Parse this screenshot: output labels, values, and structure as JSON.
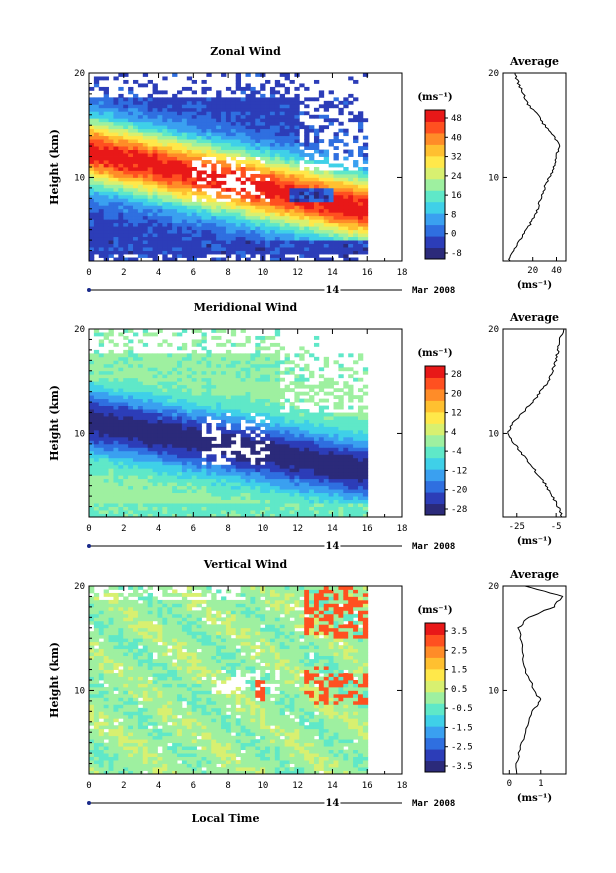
{
  "chart_data": [
    {
      "type": "heatmap",
      "title": "Zonal Wind",
      "ylabel": "Height (km)",
      "xlim": [
        0,
        18
      ],
      "ylim": [
        2,
        20
      ],
      "x_ticks": [
        "0",
        "2",
        "4",
        "6",
        "8",
        "10",
        "12",
        "14",
        "16",
        "18"
      ],
      "y_ticks": [
        "10",
        "20"
      ],
      "colorbar_unit": "(ms⁻¹)",
      "colorbar_ticks": [
        "48",
        "40",
        "32",
        "24",
        "16",
        "8",
        "0",
        "-8"
      ],
      "colorbar_range": [
        -8,
        52
      ],
      "date_label": "14",
      "date_suffix": "Mar 2008",
      "average": {
        "title": "Average",
        "x_ticks": [
          "20",
          "40"
        ],
        "xlim": [
          -5,
          48
        ],
        "xlabel": "(ms⁻¹)",
        "profile": [
          [
            0,
            2
          ],
          [
            4,
            3
          ],
          [
            9,
            4
          ],
          [
            15,
            5
          ],
          [
            20,
            6
          ],
          [
            24,
            7
          ],
          [
            27,
            8
          ],
          [
            30,
            9
          ],
          [
            34,
            10
          ],
          [
            38,
            11
          ],
          [
            40,
            12
          ],
          [
            42,
            13
          ],
          [
            38,
            14
          ],
          [
            30,
            15
          ],
          [
            24,
            16
          ],
          [
            16,
            17
          ],
          [
            12,
            18
          ],
          [
            8,
            19
          ],
          [
            5,
            20
          ]
        ]
      }
    },
    {
      "type": "heatmap",
      "title": "Meridional Wind",
      "ylabel": "Height (km)",
      "xlim": [
        0,
        18
      ],
      "ylim": [
        2,
        20
      ],
      "x_ticks": [
        "0",
        "2",
        "4",
        "6",
        "8",
        "10",
        "12",
        "14",
        "16",
        "18"
      ],
      "y_ticks": [
        "10",
        "20"
      ],
      "colorbar_unit": "(ms⁻¹)",
      "colorbar_ticks": [
        "28",
        "20",
        "12",
        "4",
        "-4",
        "-12",
        "-20",
        "-28"
      ],
      "colorbar_range": [
        -32,
        32
      ],
      "date_label": "14",
      "date_suffix": "Mar 2008",
      "average": {
        "title": "Average",
        "x_ticks": [
          "-25",
          "-5"
        ],
        "xlim": [
          -32,
          0
        ],
        "xlabel": "(ms⁻¹)",
        "profile": [
          [
            -2,
            2
          ],
          [
            -4,
            3
          ],
          [
            -7,
            4
          ],
          [
            -10,
            5
          ],
          [
            -14,
            6
          ],
          [
            -18,
            7
          ],
          [
            -22,
            8
          ],
          [
            -26,
            9
          ],
          [
            -30,
            10
          ],
          [
            -27,
            11
          ],
          [
            -22,
            12
          ],
          [
            -17,
            13
          ],
          [
            -13,
            14
          ],
          [
            -9,
            15
          ],
          [
            -7,
            16
          ],
          [
            -5,
            17
          ],
          [
            -4,
            18
          ],
          [
            -3,
            19
          ],
          [
            -1,
            20
          ]
        ]
      }
    },
    {
      "type": "heatmap",
      "title": "Vertical Wind",
      "ylabel": "Height (km)",
      "xlabel": "Local Time",
      "xlim": [
        0,
        18
      ],
      "ylim": [
        2,
        20
      ],
      "x_ticks": [
        "0",
        "2",
        "4",
        "6",
        "8",
        "10",
        "12",
        "14",
        "16",
        "18"
      ],
      "y_ticks": [
        "10",
        "20"
      ],
      "colorbar_unit": "(ms⁻¹)",
      "colorbar_ticks": [
        "3.5",
        "2.5",
        "1.5",
        "0.5",
        "-0.5",
        "-1.5",
        "-2.5",
        "-3.5"
      ],
      "colorbar_range": [
        -4,
        4
      ],
      "date_label": "14",
      "date_suffix": "Mar 2008",
      "average": {
        "title": "Average",
        "x_ticks": [
          "0",
          "1"
        ],
        "xlim": [
          -0.2,
          1.8
        ],
        "xlabel": "(ms⁻¹)",
        "profile": [
          [
            0.2,
            2
          ],
          [
            0.3,
            4
          ],
          [
            0.5,
            6
          ],
          [
            0.7,
            8
          ],
          [
            1.0,
            9
          ],
          [
            0.8,
            10
          ],
          [
            0.5,
            12
          ],
          [
            0.4,
            14
          ],
          [
            0.3,
            16
          ],
          [
            0.6,
            17
          ],
          [
            1.4,
            18
          ],
          [
            1.7,
            19
          ],
          [
            0.5,
            20
          ]
        ]
      }
    }
  ]
}
